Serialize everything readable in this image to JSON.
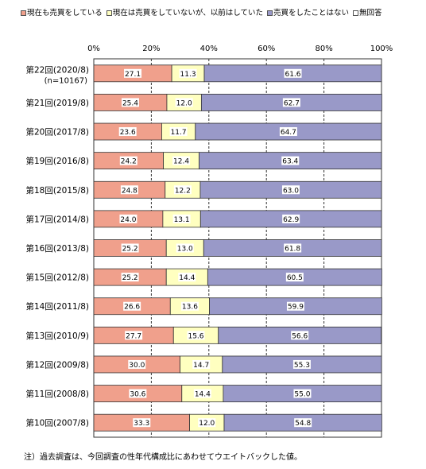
{
  "chart_data": {
    "type": "bar",
    "orientation": "horizontal",
    "stacked": true,
    "categories": [
      "第22回(2020/8)",
      "第21回(2019/8)",
      "第20回(2017/8)",
      "第19回(2016/8)",
      "第18回(2015/8)",
      "第17回(2014/8)",
      "第16回(2013/8)",
      "第15回(2012/8)",
      "第14回(2011/8)",
      "第13回(2010/9)",
      "第12回(2009/8)",
      "第11回(2008/8)",
      "第10回(2007/8)"
    ],
    "category_sublabels": [
      "(n=10167)",
      "",
      "",
      "",
      "",
      "",
      "",
      "",
      "",
      "",
      "",
      "",
      ""
    ],
    "series": [
      {
        "name": "現在も売買をしている",
        "color": "#f0a08c",
        "values": [
          27.1,
          25.4,
          23.6,
          24.2,
          24.8,
          24.0,
          25.2,
          25.2,
          26.6,
          27.7,
          30.0,
          30.6,
          33.3
        ]
      },
      {
        "name": "現在は売買をしていないが、以前はしていた",
        "color": "#ffffc0",
        "values": [
          11.3,
          12.0,
          11.7,
          12.4,
          12.2,
          13.1,
          13.0,
          14.4,
          13.6,
          15.6,
          14.7,
          14.4,
          12.0
        ]
      },
      {
        "name": "売買をしたことはない",
        "color": "#9999c8",
        "values": [
          61.6,
          62.7,
          64.7,
          63.4,
          63.0,
          62.9,
          61.8,
          60.5,
          59.9,
          56.6,
          55.3,
          55.0,
          54.8
        ]
      },
      {
        "name": "無回答",
        "color": "#ffffff",
        "values": [
          0,
          0,
          0,
          0,
          0,
          0,
          0,
          0,
          0,
          0,
          0,
          0,
          0
        ]
      }
    ],
    "xlim": [
      0,
      100
    ],
    "ticks": [
      "0%",
      "20%",
      "40%",
      "60%",
      "80%",
      "100%"
    ],
    "legend_position": "top",
    "grid": true
  },
  "note": "注）過去調査は、今回調査の性年代構成比にあわせてウエイトバックした値。"
}
